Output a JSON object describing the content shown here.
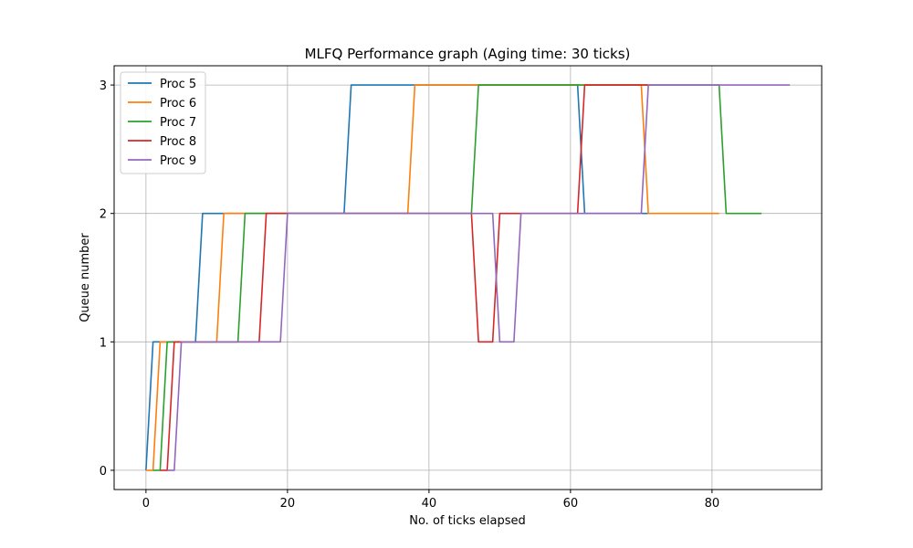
{
  "chart_data": {
    "type": "line",
    "title": "MLFQ Performance graph (Aging time: 30 ticks)",
    "xlabel": "No. of ticks elapsed",
    "ylabel": "Queue number",
    "xlim": [
      -4.5,
      95.5
    ],
    "ylim": [
      -0.15,
      3.15
    ],
    "xticks": [
      0,
      20,
      40,
      60,
      80
    ],
    "yticks": [
      0,
      1,
      2,
      3
    ],
    "grid": true,
    "legend": "upper-left",
    "series": [
      {
        "name": "Proc 5",
        "color": "#1f77b4",
        "points": [
          [
            0,
            0
          ],
          [
            1,
            1
          ],
          [
            7,
            1
          ],
          [
            8,
            2
          ],
          [
            28,
            2
          ],
          [
            29,
            3
          ],
          [
            61,
            3
          ],
          [
            62,
            2
          ],
          [
            71,
            2
          ]
        ]
      },
      {
        "name": "Proc 6",
        "color": "#ff7f0e",
        "points": [
          [
            0,
            0
          ],
          [
            1,
            0
          ],
          [
            2,
            1
          ],
          [
            10,
            1
          ],
          [
            11,
            2
          ],
          [
            37,
            2
          ],
          [
            38,
            3
          ],
          [
            70,
            3
          ],
          [
            71,
            2
          ],
          [
            81,
            2
          ]
        ]
      },
      {
        "name": "Proc 7",
        "color": "#2ca02c",
        "points": [
          [
            1,
            0
          ],
          [
            2,
            0
          ],
          [
            3,
            1
          ],
          [
            13,
            1
          ],
          [
            14,
            2
          ],
          [
            46,
            2
          ],
          [
            47,
            3
          ],
          [
            81,
            3
          ],
          [
            82,
            2
          ],
          [
            87,
            2
          ]
        ]
      },
      {
        "name": "Proc 8",
        "color": "#d62728",
        "points": [
          [
            2,
            0
          ],
          [
            3,
            0
          ],
          [
            4,
            1
          ],
          [
            16,
            1
          ],
          [
            17,
            2
          ],
          [
            46,
            2
          ],
          [
            47,
            1
          ],
          [
            49,
            1
          ],
          [
            50,
            2
          ],
          [
            61,
            2
          ],
          [
            62,
            3
          ],
          [
            71,
            3
          ]
        ]
      },
      {
        "name": "Proc 9",
        "color": "#9467bd",
        "points": [
          [
            3,
            0
          ],
          [
            4,
            0
          ],
          [
            5,
            1
          ],
          [
            19,
            1
          ],
          [
            20,
            2
          ],
          [
            49,
            2
          ],
          [
            50,
            1
          ],
          [
            52,
            1
          ],
          [
            53,
            2
          ],
          [
            70,
            2
          ],
          [
            71,
            3
          ],
          [
            91,
            3
          ]
        ]
      }
    ]
  }
}
